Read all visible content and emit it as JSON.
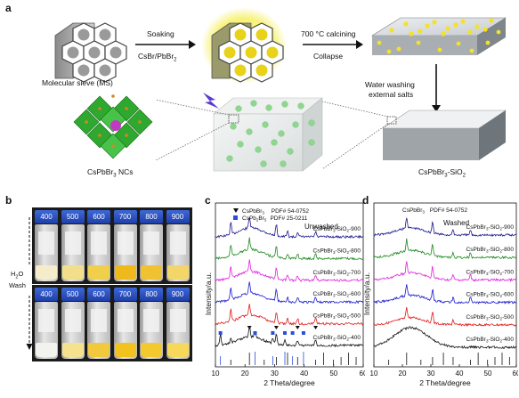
{
  "panel_a": {
    "label": "a",
    "step1_top": "Soaking",
    "step1_bottom": "CsBr/PbBr",
    "step1_sub": "2",
    "step2_top": "700 °C calcining",
    "step2_bottom": "Collapse",
    "step3_line1": "Water washing",
    "step3_line2": "external salts",
    "ms_label": "Molecular sieve (MS)",
    "ncs_label": "CsPbBr",
    "ncs_sub": "3",
    "ncs_suffix": " NCs",
    "product_label": "CsPbBr",
    "product_sub1": "3",
    "product_mid": "-SiO",
    "product_sub2": "2"
  },
  "panel_b": {
    "label": "b",
    "temps_top": [
      "400",
      "500",
      "600",
      "700",
      "800",
      "900"
    ],
    "temps_bottom": [
      "400",
      "500",
      "600",
      "700",
      "800",
      "900"
    ],
    "wash_label": "H",
    "wash_sub": "2",
    "wash_suffix": "O",
    "wash_label2": "Wash",
    "powder_colors_top": [
      "#f4eccb",
      "#f2df8c",
      "#f0cf4a",
      "#eeb91a",
      "#f0c232",
      "#f2d66a"
    ],
    "powder_colors_bottom": [
      "#f2f2ee",
      "#f4e28e",
      "#f2c83c",
      "#f2c21e",
      "#f4c92e",
      "#f6d85a"
    ]
  },
  "panel_c": {
    "label": "c",
    "legend1": "CsPbBr",
    "legend1_sub": "3",
    "legend1_pdf": "PDF# 54-0752",
    "legend2_a": "CsPb",
    "legend2_s1": "2",
    "legend2_b": "Br",
    "legend2_s2": "5",
    "legend2_pdf": "PDF# 25-0211",
    "state": "Unwashed",
    "xlabel": "2 Theta/degree",
    "ylabel": "Intensity/a.u.",
    "xticks": [
      "10",
      "20",
      "30",
      "40",
      "50",
      "60"
    ],
    "series_labels": [
      "900",
      "800",
      "700",
      "600",
      "500",
      "400"
    ]
  },
  "panel_d": {
    "label": "d",
    "legend1": "CsPbBr",
    "legend1_sub": "3",
    "legend1_pdf": "PDF# 54-0752",
    "state": "Washed",
    "xlabel": "2 Theta/degree",
    "ylabel": "Intensity/a.u.",
    "xticks": [
      "10",
      "20",
      "30",
      "40",
      "50",
      "60"
    ],
    "series_labels": [
      "900",
      "800",
      "700",
      "600",
      "500",
      "400"
    ]
  },
  "series_prefix": "CsPbBr",
  "series_sub1": "3",
  "series_mid": "-SiO",
  "series_sub2": "2",
  "series_dash": "-",
  "chart_data": [
    {
      "type": "line",
      "panel": "c",
      "xlabel": "2 Theta/degree",
      "ylabel": "Intensity/a.u.",
      "xlim": [
        10,
        60
      ],
      "series": [
        {
          "name": "CsPbBr3-SiO2-900",
          "color": "#1a1a8c",
          "peaks": [
            15.2,
            21.5,
            30.6,
            34.4,
            37.8,
            43.9
          ]
        },
        {
          "name": "CsPbBr3-SiO2-800",
          "color": "#1e8a1e",
          "peaks": [
            15.2,
            21.5,
            30.6,
            34.4,
            37.8,
            43.9
          ]
        },
        {
          "name": "CsPbBr3-SiO2-700",
          "color": "#e020e0",
          "peaks": [
            15.2,
            21.5,
            30.6,
            34.4,
            37.8,
            43.9
          ]
        },
        {
          "name": "CsPbBr3-SiO2-600",
          "color": "#1a1ad0",
          "peaks": [
            15.2,
            21.5,
            30.6,
            34.4,
            37.8,
            43.9
          ]
        },
        {
          "name": "CsPbBr3-SiO2-500",
          "color": "#e01a1a",
          "peaks": [
            15.2,
            21.5,
            30.6,
            34.4,
            37.8,
            43.9
          ]
        },
        {
          "name": "CsPbBr3-SiO2-400",
          "color": "#111111",
          "peaks": [
            11.7,
            15.2,
            21.5,
            23.4,
            29.4,
            30.6,
            33.5,
            37.8,
            43.9
          ]
        }
      ],
      "reference_CsPbBr3": [
        15.2,
        21.5,
        26.5,
        30.6,
        34.4,
        37.8,
        43.9,
        46.6,
        49.9,
        52.5,
        55.0,
        57.6
      ],
      "reference_CsPb2Br5": [
        11.7,
        23.4,
        29.4,
        33.5,
        36.1,
        39.8
      ]
    },
    {
      "type": "line",
      "panel": "d",
      "xlabel": "2 Theta/degree",
      "ylabel": "Intensity/a.u.",
      "xlim": [
        10,
        60
      ],
      "series": [
        {
          "name": "CsPbBr3-SiO2-900",
          "color": "#1a1a8c",
          "peaks": [
            21.5,
            30.6,
            37.8,
            43.9
          ]
        },
        {
          "name": "CsPbBr3-SiO2-800",
          "color": "#1e8a1e",
          "peaks": [
            21.5,
            30.6,
            37.8,
            43.9
          ]
        },
        {
          "name": "CsPbBr3-SiO2-700",
          "color": "#e020e0",
          "peaks": [
            21.5,
            30.6,
            37.8,
            43.9
          ]
        },
        {
          "name": "CsPbBr3-SiO2-600",
          "color": "#1a1ad0",
          "peaks": [
            21.5,
            30.6,
            37.8,
            43.9
          ]
        },
        {
          "name": "CsPbBr3-SiO2-500",
          "color": "#e01a1a",
          "peaks": [
            21.5,
            30.6,
            37.8
          ]
        },
        {
          "name": "CsPbBr3-SiO2-400",
          "color": "#111111",
          "peaks": []
        }
      ],
      "reference_CsPbBr3": [
        15.2,
        21.5,
        26.5,
        30.6,
        34.4,
        37.8,
        43.9,
        46.6,
        49.9,
        52.5,
        55.0,
        57.6
      ]
    }
  ]
}
